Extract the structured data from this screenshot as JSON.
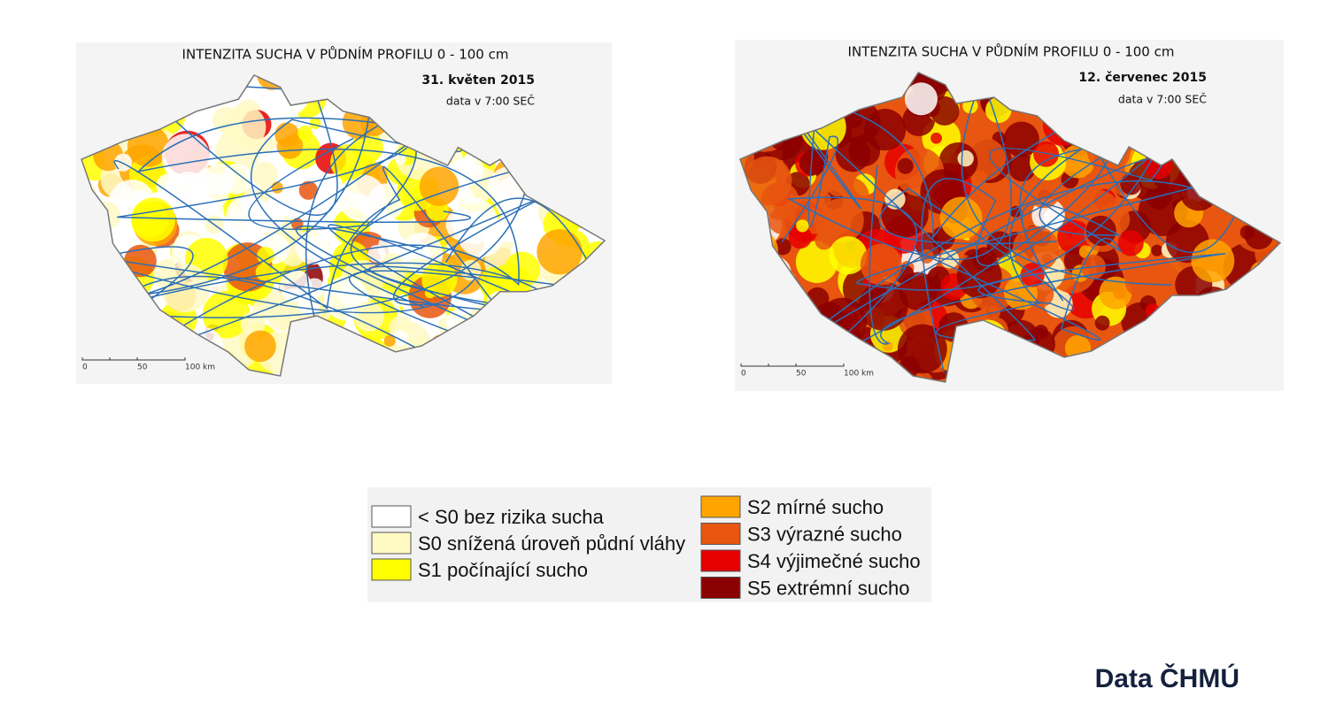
{
  "maps": [
    {
      "title": "INTENZITA SUCHA V PŮDNÍM PROFILU 0 - 100 cm",
      "date": "31. květen 2015",
      "note": "data v 7:00 SEČ",
      "scale": [
        "0",
        "50",
        "100 km"
      ]
    },
    {
      "title": "INTENZITA SUCHA V PŮDNÍM PROFILU 0 - 100 cm",
      "date": "12. červenec 2015",
      "note": "data v 7:00 SEČ",
      "scale": [
        "0",
        "50",
        "100 km"
      ]
    }
  ],
  "legend": [
    {
      "label": "< S0 bez rizika sucha",
      "color": "#ffffff"
    },
    {
      "label": "S0 snížená úroveň půdní vláhy",
      "color": "#fff9c4"
    },
    {
      "label": "S1 počínající sucho",
      "color": "#ffff00"
    },
    {
      "label": "S2 mírné sucho",
      "color": "#ffa500"
    },
    {
      "label": "S3 výrazné sucho",
      "color": "#e8560f"
    },
    {
      "label": "S4 výjimečné sucho",
      "color": "#e60000"
    },
    {
      "label": "S5 extrémní sucho",
      "color": "#8b0000"
    }
  ],
  "source": "Data ČHMÚ"
}
